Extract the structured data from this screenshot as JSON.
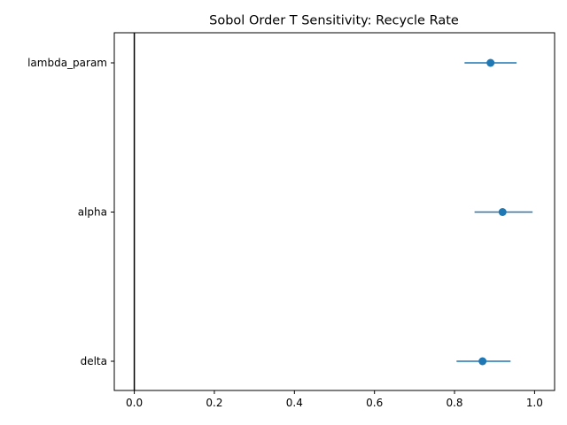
{
  "chart_data": {
    "type": "scatter",
    "title": "Sobol Order T Sensitivity: Recycle Rate",
    "xlabel": "",
    "ylabel": "",
    "xlim": [
      -0.05,
      1.05
    ],
    "xticks": [
      0.0,
      0.2,
      0.4,
      0.6,
      0.8,
      1.0
    ],
    "xtick_labels": [
      "0.0",
      "0.2",
      "0.4",
      "0.6",
      "0.8",
      "1.0"
    ],
    "categories": [
      "lambda_param",
      "alpha",
      "delta"
    ],
    "values": [
      0.89,
      0.92,
      0.87
    ],
    "ci_low": [
      0.825,
      0.85,
      0.805
    ],
    "ci_high": [
      0.955,
      0.995,
      0.94
    ],
    "reference_line_x": 0.0,
    "grid": false,
    "colors": {
      "marker": "#1f77b4",
      "errorbar": "#1f77b4",
      "reference_line": "#000000",
      "axes": "#000000"
    }
  }
}
